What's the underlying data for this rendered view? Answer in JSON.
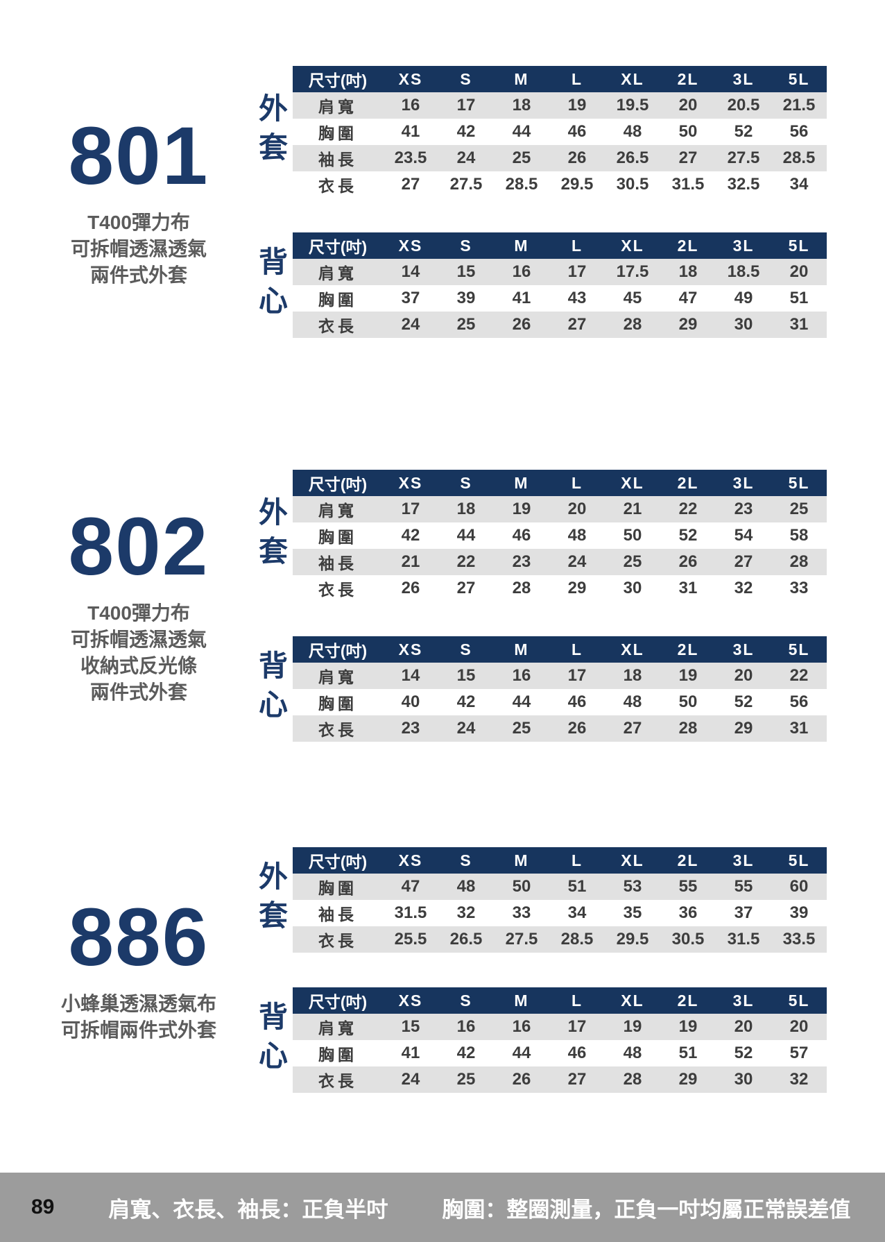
{
  "size_header": [
    "尺寸(吋)",
    "XS",
    "S",
    "M",
    "L",
    "XL",
    "2L",
    "3L",
    "5L"
  ],
  "products": [
    {
      "code": "801",
      "description": [
        "T400彈力布",
        "可拆帽透濕透氣",
        "兩件式外套"
      ],
      "tables": [
        {
          "label": "外套",
          "rows": [
            {
              "label": "肩寬",
              "values": [
                "16",
                "17",
                "18",
                "19",
                "19.5",
                "20",
                "20.5",
                "21.5"
              ]
            },
            {
              "label": "胸圍",
              "values": [
                "41",
                "42",
                "44",
                "46",
                "48",
                "50",
                "52",
                "56"
              ]
            },
            {
              "label": "袖長",
              "values": [
                "23.5",
                "24",
                "25",
                "26",
                "26.5",
                "27",
                "27.5",
                "28.5"
              ]
            },
            {
              "label": "衣長",
              "values": [
                "27",
                "27.5",
                "28.5",
                "29.5",
                "30.5",
                "31.5",
                "32.5",
                "34"
              ]
            }
          ]
        },
        {
          "label": "背心",
          "rows": [
            {
              "label": "肩寬",
              "values": [
                "14",
                "15",
                "16",
                "17",
                "17.5",
                "18",
                "18.5",
                "20"
              ]
            },
            {
              "label": "胸圍",
              "values": [
                "37",
                "39",
                "41",
                "43",
                "45",
                "47",
                "49",
                "51"
              ]
            },
            {
              "label": "衣長",
              "values": [
                "24",
                "25",
                "26",
                "27",
                "28",
                "29",
                "30",
                "31"
              ]
            }
          ]
        }
      ]
    },
    {
      "code": "802",
      "description": [
        "T400彈力布",
        "可拆帽透濕透氣",
        "收納式反光條",
        "兩件式外套"
      ],
      "tables": [
        {
          "label": "外套",
          "rows": [
            {
              "label": "肩寬",
              "values": [
                "17",
                "18",
                "19",
                "20",
                "21",
                "22",
                "23",
                "25"
              ]
            },
            {
              "label": "胸圍",
              "values": [
                "42",
                "44",
                "46",
                "48",
                "50",
                "52",
                "54",
                "58"
              ]
            },
            {
              "label": "袖長",
              "values": [
                "21",
                "22",
                "23",
                "24",
                "25",
                "26",
                "27",
                "28"
              ]
            },
            {
              "label": "衣長",
              "values": [
                "26",
                "27",
                "28",
                "29",
                "30",
                "31",
                "32",
                "33"
              ]
            }
          ]
        },
        {
          "label": "背心",
          "rows": [
            {
              "label": "肩寬",
              "values": [
                "14",
                "15",
                "16",
                "17",
                "18",
                "19",
                "20",
                "22"
              ]
            },
            {
              "label": "胸圍",
              "values": [
                "40",
                "42",
                "44",
                "46",
                "48",
                "50",
                "52",
                "56"
              ]
            },
            {
              "label": "衣長",
              "values": [
                "23",
                "24",
                "25",
                "26",
                "27",
                "28",
                "29",
                "31"
              ]
            }
          ]
        }
      ]
    },
    {
      "code": "886",
      "description": [
        "小蜂巢透濕透氣布",
        "可拆帽兩件式外套"
      ],
      "tables": [
        {
          "label": "外套",
          "rows": [
            {
              "label": "胸圍",
              "values": [
                "47",
                "48",
                "50",
                "51",
                "53",
                "55",
                "55",
                "60"
              ]
            },
            {
              "label": "袖長",
              "values": [
                "31.5",
                "32",
                "33",
                "34",
                "35",
                "36",
                "37",
                "39"
              ]
            },
            {
              "label": "衣長",
              "values": [
                "25.5",
                "26.5",
                "27.5",
                "28.5",
                "29.5",
                "30.5",
                "31.5",
                "33.5"
              ]
            }
          ]
        },
        {
          "label": "背心",
          "rows": [
            {
              "label": "肩寬",
              "values": [
                "15",
                "16",
                "16",
                "17",
                "19",
                "19",
                "20",
                "20"
              ]
            },
            {
              "label": "胸圍",
              "values": [
                "41",
                "42",
                "44",
                "46",
                "48",
                "51",
                "52",
                "57"
              ]
            },
            {
              "label": "衣長",
              "values": [
                "24",
                "25",
                "26",
                "27",
                "28",
                "29",
                "30",
                "32"
              ]
            }
          ]
        }
      ]
    }
  ],
  "footer": {
    "page_number": "89",
    "note_left": "肩寬、衣長、袖長：正負半吋",
    "note_right": "胸圍：整圈測量，正負一吋均屬正常誤差值"
  },
  "colors": {
    "table_header_bg": "#17355e",
    "row_alt_bg": "#e1e1e1",
    "accent_navy": "#1c3a69",
    "description_gray": "#5b5b5b",
    "footer_bg": "#9c9c9c"
  }
}
